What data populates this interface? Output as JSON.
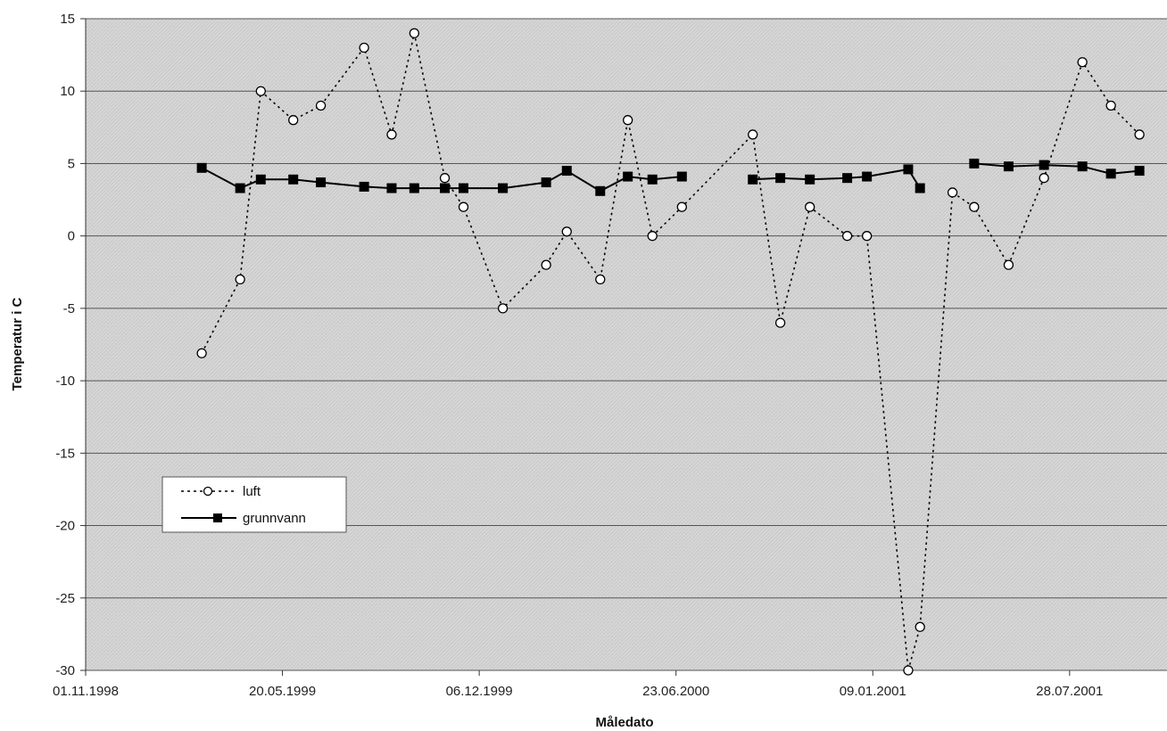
{
  "chart_data": {
    "type": "line",
    "xlabel": "Måledato",
    "ylabel": "Temperatur i C",
    "ylim": [
      -30,
      15
    ],
    "xlim": [
      "1998-11-01",
      "2001-11-04"
    ],
    "y_ticks": [
      "15",
      "10",
      "5",
      "0",
      "-5",
      "-10",
      "-15",
      "-20",
      "-25",
      "-30"
    ],
    "x_ticks": [
      "01.11.1998",
      "20.05.1999",
      "06.12.1999",
      "23.06.2000",
      "09.01.2001",
      "28.07.2001"
    ],
    "grid": true,
    "legend_position": "lower-left",
    "plot_background": "#d9d9d9",
    "series": [
      {
        "name": "luft",
        "style": "dotted",
        "marker": "open-circle",
        "color": "#000000",
        "points": [
          {
            "x": "1999-02-27",
            "y": -8.1
          },
          {
            "x": "1999-04-07",
            "y": -3
          },
          {
            "x": "1999-04-28",
            "y": 10
          },
          {
            "x": "1999-05-31",
            "y": 8
          },
          {
            "x": "1999-06-28",
            "y": 9
          },
          {
            "x": "1999-08-11",
            "y": 13
          },
          {
            "x": "1999-09-08",
            "y": 7
          },
          {
            "x": "1999-10-01",
            "y": 14
          },
          {
            "x": "1999-11-01",
            "y": 4
          },
          {
            "x": "1999-11-20",
            "y": 2
          },
          {
            "x": "1999-12-30",
            "y": -5
          },
          {
            "x": "2000-02-12",
            "y": -2
          },
          {
            "x": "2000-03-04",
            "y": 0.3
          },
          {
            "x": "2000-04-07",
            "y": -3
          },
          {
            "x": "2000-04-35",
            "y": 8
          },
          {
            "x": "2000-05-30",
            "y": 0
          },
          {
            "x": "2000-06-29",
            "y": 2
          },
          {
            "x": "2000-09-09",
            "y": 7
          },
          {
            "x": "2000-10-07",
            "y": -6
          },
          {
            "x": "2000-11-06",
            "y": 2
          },
          {
            "x": "2000-12-14",
            "y": 0
          },
          {
            "x": "2001-01-03",
            "y": 0
          },
          {
            "x": "2001-01-45",
            "y": -30
          },
          {
            "x": "2001-02-26",
            "y": -27
          },
          {
            "x": "2001-03-31",
            "y": 3
          },
          {
            "x": "2001-04-22",
            "y": 2
          },
          {
            "x": "2001-05-27",
            "y": -2
          },
          {
            "x": "2001-07-02",
            "y": 4
          },
          {
            "x": "2001-08-10",
            "y": 12
          },
          {
            "x": "2001-09-08",
            "y": 9
          },
          {
            "x": "2001-10-07",
            "y": 7
          }
        ]
      },
      {
        "name": "grunnvann",
        "style": "solid",
        "marker": "filled-square",
        "color": "#000000",
        "points": [
          {
            "x": "1999-02-27",
            "y": 4.7
          },
          {
            "x": "1999-04-07",
            "y": 3.3
          },
          {
            "x": "1999-04-28",
            "y": 3.9
          },
          {
            "x": "1999-05-31",
            "y": 3.9
          },
          {
            "x": "1999-06-28",
            "y": 3.7
          },
          {
            "x": "1999-08-11",
            "y": 3.4
          },
          {
            "x": "1999-09-08",
            "y": 3.3
          },
          {
            "x": "1999-10-01",
            "y": 3.3
          },
          {
            "x": "1999-11-01",
            "y": 3.3
          },
          {
            "x": "1999-11-20",
            "y": 3.3
          },
          {
            "x": "1999-12-30",
            "y": 3.3
          },
          {
            "x": "2000-02-12",
            "y": 3.7
          },
          {
            "x": "2000-03-04",
            "y": 4.5
          },
          {
            "x": "2000-04-07",
            "y": 3.1
          },
          {
            "x": "2000-04-35",
            "y": 4.1
          },
          {
            "x": "2000-05-30",
            "y": 3.9
          },
          {
            "x": "2000-06-29",
            "y": 4.1
          },
          {
            "x": "2000-09-09",
            "y": 3.9
          },
          {
            "x": "2000-10-07",
            "y": 4.0
          },
          {
            "x": "2000-11-06",
            "y": 3.9
          },
          {
            "x": "2000-12-14",
            "y": 4.0
          },
          {
            "x": "2001-01-03",
            "y": 4.1
          },
          {
            "x": "2001-01-45",
            "y": 4.6
          },
          {
            "x": "2001-02-26",
            "y": 3.3
          },
          {
            "x": "2001-04-22",
            "y": 5.0
          },
          {
            "x": "2001-05-27",
            "y": 4.8
          },
          {
            "x": "2001-07-02",
            "y": 4.9
          },
          {
            "x": "2001-08-10",
            "y": 4.8
          },
          {
            "x": "2001-09-08",
            "y": 4.3
          },
          {
            "x": "2001-10-07",
            "y": 4.5
          }
        ]
      }
    ]
  }
}
